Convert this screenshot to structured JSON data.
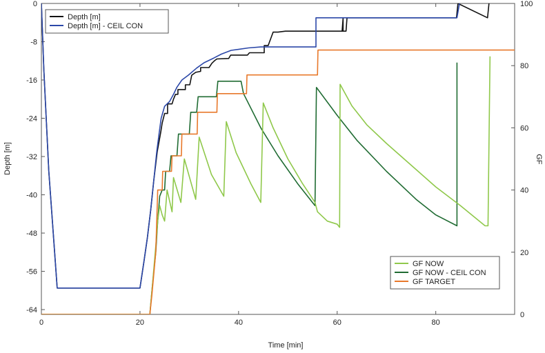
{
  "chart_data": {
    "type": "line",
    "xlabel": "Time [min]",
    "ylabel_left": "Depth [m]",
    "ylabel_right": "GF",
    "xlim": [
      0,
      96
    ],
    "ylim_left": [
      -65,
      0
    ],
    "ylim_right": [
      0,
      100
    ],
    "x_ticks": [
      0,
      20,
      40,
      60,
      80
    ],
    "y_left_ticks": [
      0,
      -8,
      -16,
      -24,
      -32,
      -40,
      -48,
      -56,
      -64
    ],
    "y_right_ticks": [
      0,
      20,
      40,
      60,
      80,
      100
    ],
    "legend_top_left": [
      {
        "name": "Depth [m]",
        "color": "#111111"
      },
      {
        "name": "Depth [m] - CEIL CON",
        "color": "#2b47a8"
      }
    ],
    "legend_bottom_right": [
      {
        "name": "GF NOW",
        "color": "#8fc84a"
      },
      {
        "name": "GF NOW - CEIL CON",
        "color": "#1f6b32"
      },
      {
        "name": "GF TARGET",
        "color": "#e8782a"
      }
    ],
    "series": [
      {
        "name": "Depth [m]",
        "axis": "left",
        "color": "#111111",
        "points": [
          [
            0,
            0
          ],
          [
            0.5,
            -14
          ],
          [
            1.5,
            -35
          ],
          [
            3.2,
            -59.5
          ],
          [
            20,
            -59.5
          ],
          [
            20.8,
            -54
          ],
          [
            21.5,
            -49
          ],
          [
            22.2,
            -43
          ],
          [
            22.8,
            -37
          ],
          [
            23.5,
            -31
          ],
          [
            24.2,
            -27
          ],
          [
            24.5,
            -25
          ],
          [
            25,
            -23
          ],
          [
            25.6,
            -23
          ],
          [
            25.6,
            -21
          ],
          [
            26.5,
            -21
          ],
          [
            26.8,
            -20
          ],
          [
            27.2,
            -19
          ],
          [
            27.7,
            -19
          ],
          [
            27.7,
            -18
          ],
          [
            29.2,
            -18
          ],
          [
            29.2,
            -17
          ],
          [
            30.1,
            -17
          ],
          [
            30.5,
            -15
          ],
          [
            31.3,
            -14.4
          ],
          [
            32.3,
            -14.2
          ],
          [
            32.3,
            -13.4
          ],
          [
            34,
            -13.4
          ],
          [
            34.6,
            -12.5
          ],
          [
            35.2,
            -11.9
          ],
          [
            35.6,
            -11.6
          ],
          [
            38,
            -11.5
          ],
          [
            38.4,
            -10.8
          ],
          [
            41.8,
            -10.8
          ],
          [
            42.2,
            -10.3
          ],
          [
            45.2,
            -10.3
          ],
          [
            45.2,
            -8.8
          ],
          [
            46,
            -8.8
          ],
          [
            47,
            -6
          ],
          [
            48,
            -6
          ],
          [
            49.5,
            -5.8
          ],
          [
            50.8,
            -5.8
          ],
          [
            52,
            -5.8
          ],
          [
            58,
            -5.8
          ],
          [
            58.2,
            -5.8
          ],
          [
            60.4,
            -5.8
          ],
          [
            61,
            -5.8
          ],
          [
            61.2,
            -3.1
          ],
          [
            61.2,
            -5.8
          ],
          [
            61.5,
            -5.8
          ],
          [
            60.8,
            -5.8
          ],
          [
            61.8,
            -5.8
          ],
          [
            62,
            -3
          ],
          [
            84.2,
            -3
          ],
          [
            84.5,
            0
          ],
          [
            90.5,
            -3
          ],
          [
            90.8,
            0
          ]
        ]
      },
      {
        "name": "Depth [m] - CEIL CON",
        "axis": "left",
        "color": "#2b47a8",
        "points": [
          [
            0,
            0
          ],
          [
            0.5,
            -14
          ],
          [
            1.5,
            -35
          ],
          [
            3.2,
            -59.5
          ],
          [
            20,
            -59.5
          ],
          [
            20.8,
            -54
          ],
          [
            21.5,
            -49
          ],
          [
            22.2,
            -43
          ],
          [
            22.8,
            -37
          ],
          [
            23.4,
            -31
          ],
          [
            23.9,
            -27
          ],
          [
            24.3,
            -24
          ],
          [
            25,
            -21.5
          ],
          [
            26,
            -20.5
          ],
          [
            26.8,
            -19
          ],
          [
            27.5,
            -17.5
          ],
          [
            28.5,
            -16
          ],
          [
            29.8,
            -15
          ],
          [
            31.5,
            -13.5
          ],
          [
            33,
            -12.4
          ],
          [
            35,
            -11.4
          ],
          [
            36.5,
            -10.6
          ],
          [
            38.5,
            -9.8
          ],
          [
            40,
            -9.6
          ],
          [
            42,
            -9.3
          ],
          [
            44.5,
            -9.1
          ],
          [
            55.7,
            -9.1
          ],
          [
            55.7,
            -3
          ],
          [
            84.3,
            -3
          ],
          [
            84.8,
            0
          ]
        ]
      },
      {
        "name": "GF NOW - CEIL CON",
        "axis": "right",
        "color": "#1f6b32",
        "points": [
          [
            0,
            0
          ],
          [
            22,
            0
          ],
          [
            22.5,
            9
          ],
          [
            23.2,
            20
          ],
          [
            23.6,
            30
          ],
          [
            24,
            38
          ],
          [
            24.5,
            40
          ],
          [
            25,
            40
          ],
          [
            25.2,
            46
          ],
          [
            26,
            46
          ],
          [
            26.3,
            51
          ],
          [
            27.5,
            51
          ],
          [
            27.8,
            58
          ],
          [
            30,
            58
          ],
          [
            30.3,
            65
          ],
          [
            31.5,
            65
          ],
          [
            31.8,
            70
          ],
          [
            35.5,
            70
          ],
          [
            35.8,
            75
          ],
          [
            40.5,
            75
          ],
          [
            41,
            71
          ],
          [
            44.5,
            60
          ],
          [
            48,
            51
          ],
          [
            52,
            42
          ],
          [
            55.5,
            35
          ],
          [
            55.8,
            73
          ],
          [
            60,
            64
          ],
          [
            64,
            56
          ],
          [
            70,
            46
          ],
          [
            76,
            37
          ],
          [
            80,
            32
          ],
          [
            84.3,
            28.5
          ],
          [
            84.3,
            81
          ]
        ]
      },
      {
        "name": "GF NOW",
        "axis": "right",
        "color": "#8fc84a",
        "points": [
          [
            0,
            0
          ],
          [
            22,
            0
          ],
          [
            22.5,
            9
          ],
          [
            23.2,
            22
          ],
          [
            23.6,
            30
          ],
          [
            24,
            35
          ],
          [
            24.5,
            32
          ],
          [
            25,
            30
          ],
          [
            25.5,
            40
          ],
          [
            26.5,
            33
          ],
          [
            26.8,
            44
          ],
          [
            28.3,
            36
          ],
          [
            29,
            50
          ],
          [
            31.3,
            37
          ],
          [
            32,
            57
          ],
          [
            34.5,
            45
          ],
          [
            37,
            38
          ],
          [
            37.5,
            62
          ],
          [
            39.5,
            52
          ],
          [
            42.5,
            42
          ],
          [
            44.5,
            36
          ],
          [
            45,
            68
          ],
          [
            47,
            60
          ],
          [
            50,
            50
          ],
          [
            53,
            42
          ],
          [
            55.5,
            36
          ],
          [
            56,
            33
          ],
          [
            58,
            30
          ],
          [
            60,
            29
          ],
          [
            60.5,
            28
          ],
          [
            60.6,
            74
          ],
          [
            63,
            67
          ],
          [
            66,
            61
          ],
          [
            70,
            55
          ],
          [
            75,
            48
          ],
          [
            80,
            41
          ],
          [
            85,
            35
          ],
          [
            90,
            28.5
          ],
          [
            90.6,
            28.5
          ],
          [
            91,
            83
          ]
        ]
      },
      {
        "name": "GF TARGET",
        "axis": "right",
        "color": "#e8782a",
        "points": [
          [
            0,
            0
          ],
          [
            22,
            0
          ],
          [
            22.4,
            6
          ],
          [
            23.2,
            20
          ],
          [
            23.6,
            40
          ],
          [
            24.5,
            40
          ],
          [
            24.6,
            46
          ],
          [
            26.4,
            46
          ],
          [
            26.5,
            51
          ],
          [
            28.4,
            51
          ],
          [
            28.5,
            58
          ],
          [
            31.6,
            58
          ],
          [
            31.7,
            65
          ],
          [
            35.6,
            65
          ],
          [
            35.7,
            71
          ],
          [
            41.6,
            71
          ],
          [
            41.7,
            77
          ],
          [
            56,
            77
          ],
          [
            56.1,
            85
          ],
          [
            96,
            85
          ]
        ]
      }
    ]
  }
}
